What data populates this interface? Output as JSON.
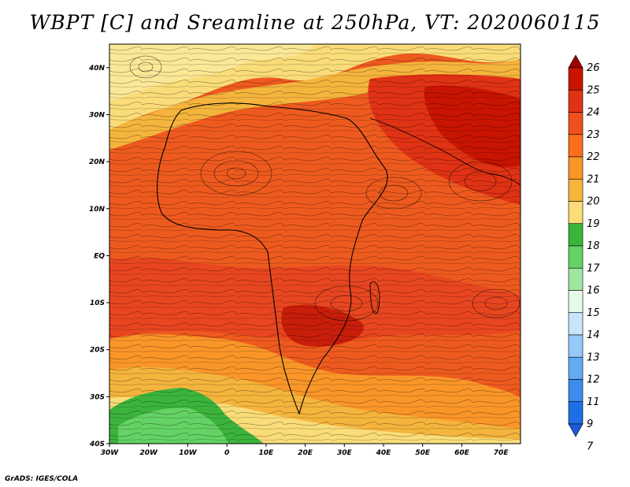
{
  "title": "WBPT [C] and Sreamline at 250hPa, VT: 2020060115",
  "credit": "GrADS: IGES/COLA",
  "map": {
    "lon_ticks": [
      "30W",
      "20W",
      "10W",
      "0",
      "10E",
      "20E",
      "30E",
      "40E",
      "50E",
      "60E",
      "70E"
    ],
    "lat_ticks": [
      "40N",
      "30N",
      "20N",
      "10N",
      "EQ",
      "10S",
      "20S",
      "30S",
      "40S"
    ],
    "lon_range": [
      -30,
      75
    ],
    "lat_range": [
      -40,
      45
    ]
  },
  "colorbar": {
    "levels": [
      "26",
      "25",
      "24",
      "23",
      "22",
      "21",
      "20",
      "19",
      "18",
      "17",
      "16",
      "15",
      "14",
      "13",
      "12",
      "11",
      "9",
      "7"
    ],
    "colors": [
      "#a00000",
      "#c81400",
      "#e03214",
      "#f0501e",
      "#fa6e1e",
      "#fa9628",
      "#f5b43c",
      "#fadc78",
      "#3cb43c",
      "#64d264",
      "#a0e6a0",
      "#e6fae6",
      "#c8e6fa",
      "#96c8fa",
      "#64aaf0",
      "#3c8cf0",
      "#1e6ee6",
      "#1e5adc"
    ]
  }
}
